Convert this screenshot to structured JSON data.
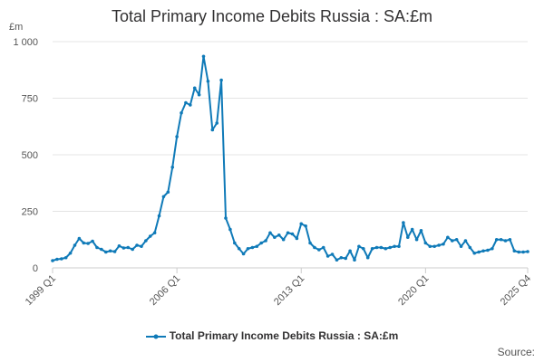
{
  "title": "Total Primary Income Debits Russia : SA:£m",
  "unit": "£m",
  "source": "Source:",
  "colors": {
    "series": "#0f7ab8",
    "grid": "#e4e4e4",
    "axis": "#cccccc"
  },
  "chart_data": {
    "type": "line",
    "title": "Total Primary Income Debits Russia : SA:£m",
    "ylabel": "£m",
    "xlabel": "",
    "ylim": [
      0,
      1000
    ],
    "yticks": [
      0,
      250,
      500,
      750,
      1000
    ],
    "ytick_labels": [
      "0",
      "250",
      "500",
      "750",
      "1 000"
    ],
    "xtick_labels": [
      "1999 Q1",
      "2006 Q1",
      "2013 Q1",
      "2020 Q1",
      "2025 Q4"
    ],
    "grid": true,
    "legend": "bottom",
    "x_start": "1999 Q1",
    "x_end": "2025 Q4",
    "series": [
      {
        "name": "Total Primary Income Debits Russia : SA:£m",
        "values": [
          32,
          38,
          40,
          45,
          65,
          100,
          130,
          110,
          108,
          118,
          90,
          82,
          70,
          75,
          72,
          97,
          88,
          90,
          82,
          100,
          95,
          120,
          140,
          155,
          230,
          315,
          335,
          445,
          580,
          685,
          730,
          720,
          795,
          765,
          935,
          825,
          610,
          640,
          830,
          220,
          170,
          110,
          85,
          62,
          85,
          90,
          95,
          110,
          120,
          155,
          135,
          145,
          125,
          155,
          150,
          130,
          195,
          185,
          110,
          90,
          80,
          90,
          52,
          60,
          35,
          45,
          42,
          75,
          35,
          95,
          85,
          45,
          85,
          90,
          90,
          85,
          90,
          95,
          95,
          200,
          135,
          170,
          125,
          165,
          110,
          95,
          95,
          100,
          105,
          135,
          120,
          125,
          95,
          120,
          90,
          65,
          70,
          75,
          78,
          85,
          125,
          125,
          120,
          125,
          75,
          70,
          70,
          72
        ]
      }
    ]
  }
}
